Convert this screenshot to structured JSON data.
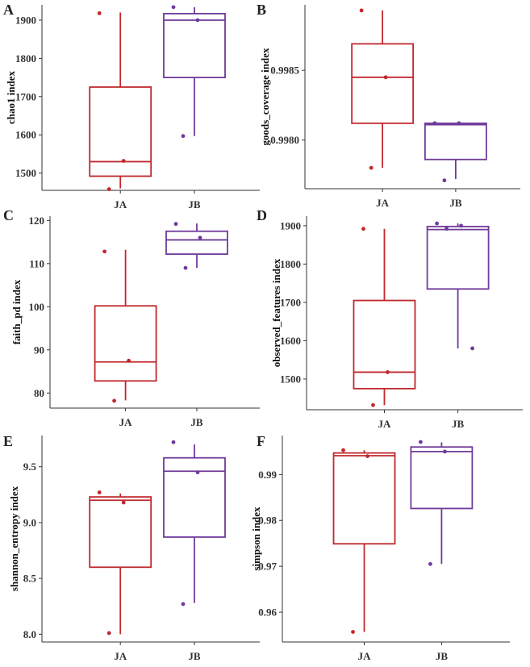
{
  "figure": {
    "colors": {
      "JA": "#c0282d",
      "JB": "#6f3a9a",
      "axis": "#333333"
    }
  },
  "chart_data": [
    {
      "panel": "A",
      "type": "box",
      "ylabel": "chao1 index",
      "categories": [
        "JA",
        "JB"
      ],
      "ylim": [
        1455,
        1940
      ],
      "yticks": [
        "1500",
        "1600",
        "1700",
        "1800",
        "1900"
      ],
      "ytick_values": [
        1500,
        1600,
        1700,
        1800,
        1900
      ],
      "boxes": [
        {
          "group": "JA",
          "whisker_low": 1460,
          "q1": 1492,
          "median": 1530,
          "q3": 1725,
          "whisker_high": 1920,
          "points": [
            1918,
            1532,
            1458
          ]
        },
        {
          "group": "JB",
          "whisker_low": 1597,
          "q1": 1750,
          "median": 1900,
          "q3": 1917,
          "whisker_high": 1934,
          "points": [
            1934,
            1900,
            1597
          ]
        }
      ]
    },
    {
      "panel": "B",
      "type": "box",
      "ylabel": "goods_coverage index",
      "categories": [
        "JA",
        "JB"
      ],
      "ylim": [
        0.99765,
        0.99897
      ],
      "yticks": [
        "0.9980",
        "0.9985"
      ],
      "ytick_values": [
        0.998,
        0.9985
      ],
      "boxes": [
        {
          "group": "JA",
          "whisker_low": 0.9978,
          "q1": 0.99812,
          "median": 0.99845,
          "q3": 0.99869,
          "whisker_high": 0.99893,
          "points": [
            0.99893,
            0.99845,
            0.9978
          ]
        },
        {
          "group": "JB",
          "whisker_low": 0.99772,
          "q1": 0.99786,
          "median": 0.99811,
          "q3": 0.99812,
          "whisker_high": 0.99812,
          "points": [
            0.99812,
            0.99812,
            0.99771
          ]
        }
      ]
    },
    {
      "panel": "C",
      "type": "box",
      "ylabel": "faith_pd index",
      "categories": [
        "JA",
        "JB"
      ],
      "ylim": [
        76.5,
        121
      ],
      "yticks": [
        "80",
        "90",
        "100",
        "110",
        "120"
      ],
      "ytick_values": [
        80,
        90,
        100,
        110,
        120
      ],
      "boxes": [
        {
          "group": "JA",
          "whisker_low": 78.3,
          "q1": 82.8,
          "median": 87.2,
          "q3": 100.2,
          "whisker_high": 113.2,
          "points": [
            112.8,
            87.5,
            78.2
          ]
        },
        {
          "group": "JB",
          "whisker_low": 109,
          "q1": 112.2,
          "median": 115.5,
          "q3": 117.5,
          "whisker_high": 119.3,
          "points": [
            119.2,
            116,
            109
          ]
        }
      ]
    },
    {
      "panel": "D",
      "type": "box",
      "ylabel": "observed_features index",
      "categories": [
        "JA",
        "JB"
      ],
      "ylim": [
        1420,
        1925
      ],
      "yticks": [
        "1500",
        "1600",
        "1700",
        "1800",
        "1900"
      ],
      "ytick_values": [
        1500,
        1600,
        1700,
        1800,
        1900
      ],
      "boxes": [
        {
          "group": "JA",
          "whisker_low": 1432,
          "q1": 1475,
          "median": 1518,
          "q3": 1705,
          "whisker_high": 1892,
          "points": [
            1892,
            1518,
            1432
          ]
        },
        {
          "group": "JB",
          "whisker_low": 1580,
          "q1": 1735,
          "median": 1890,
          "q3": 1898,
          "whisker_high": 1906,
          "points": [
            1906,
            1900,
            1892,
            1580
          ]
        }
      ]
    },
    {
      "panel": "E",
      "type": "box",
      "ylabel": "shannon_entropy index",
      "categories": [
        "JA",
        "JB"
      ],
      "ylim": [
        7.93,
        9.78
      ],
      "yticks": [
        "8.0",
        "8.5",
        "9.0",
        "9.5"
      ],
      "ytick_values": [
        8.0,
        8.5,
        9.0,
        9.5
      ],
      "boxes": [
        {
          "group": "JA",
          "whisker_low": 8.0,
          "q1": 8.6,
          "median": 9.2,
          "q3": 9.23,
          "whisker_high": 9.26,
          "points": [
            9.27,
            9.18,
            8.01
          ]
        },
        {
          "group": "JB",
          "whisker_low": 8.28,
          "q1": 8.87,
          "median": 9.46,
          "q3": 9.58,
          "whisker_high": 9.7,
          "points": [
            9.72,
            9.45,
            8.27
          ]
        }
      ]
    },
    {
      "panel": "F",
      "type": "box",
      "ylabel": "simpson index",
      "categories": [
        "JA",
        "JB"
      ],
      "ylim": [
        0.9535,
        0.9985
      ],
      "yticks": [
        "0.96",
        "0.97",
        "0.98",
        "0.99"
      ],
      "ytick_values": [
        0.96,
        0.97,
        0.98,
        0.99
      ],
      "boxes": [
        {
          "group": "JA",
          "whisker_low": 0.9557,
          "q1": 0.9749,
          "median": 0.9941,
          "q3": 0.9947,
          "whisker_high": 0.9953,
          "points": [
            0.9953,
            0.994,
            0.9557
          ]
        },
        {
          "group": "JB",
          "whisker_low": 0.9705,
          "q1": 0.9826,
          "median": 0.995,
          "q3": 0.996,
          "whisker_high": 0.997,
          "points": [
            0.9971,
            0.995,
            0.9705
          ]
        }
      ]
    }
  ]
}
